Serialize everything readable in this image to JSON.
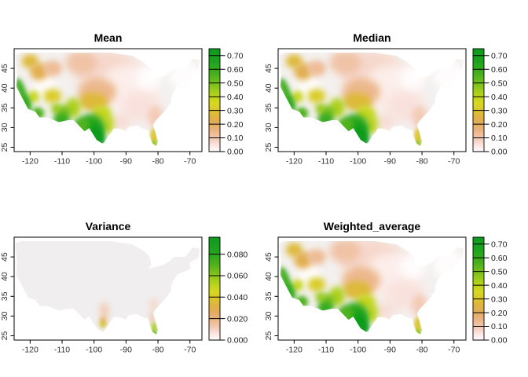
{
  "figure": {
    "background": "#ffffff",
    "layout": "2x2 grid of US raster map panels with right-side color scale legends"
  },
  "palette": {
    "description": "shared color ramp from low to high: white, pink, salmon, orange, yellow, yellow-green, green, dark green",
    "stops": [
      {
        "u": 0.0,
        "c": "#ffffff"
      },
      {
        "u": 0.07,
        "c": "#f9e1dc"
      },
      {
        "u": 0.13,
        "c": "#f2c8b0"
      },
      {
        "u": 0.2,
        "c": "#ebb485"
      },
      {
        "u": 0.27,
        "c": "#e4ab5e"
      },
      {
        "u": 0.33,
        "c": "#dfb243"
      },
      {
        "u": 0.4,
        "c": "#dcc42e"
      },
      {
        "u": 0.47,
        "c": "#d7d81f"
      },
      {
        "u": 0.53,
        "c": "#bdd51a"
      },
      {
        "u": 0.6,
        "c": "#9aca1a"
      },
      {
        "u": 0.67,
        "c": "#72bd1b"
      },
      {
        "u": 0.73,
        "c": "#51b31c"
      },
      {
        "u": 0.8,
        "c": "#35aa1d"
      },
      {
        "u": 0.87,
        "c": "#1fa31e"
      },
      {
        "u": 1.0,
        "c": "#0b9a1f"
      }
    ]
  },
  "hotspot_format": "[lon, lat, rx_deg, ry_deg, value, blur_px, rotate_deg(optional)]",
  "chart_data": [
    {
      "type": "heatmap",
      "title": "Mean",
      "xlabel": "",
      "ylabel": "",
      "x_ticks": [
        -120,
        -110,
        -100,
        -90,
        -80,
        -70
      ],
      "y_ticks": [
        45,
        40,
        35,
        30,
        25
      ],
      "xlim": [
        -125,
        -66.25
      ],
      "ylim": [
        23.9,
        50
      ],
      "grid": false,
      "base_color": "#f3f0ef",
      "legend": {
        "position": "right",
        "tick_labels": [
          "0.00",
          "0.10",
          "0.20",
          "0.30",
          "0.40",
          "0.50",
          "0.60",
          "0.70"
        ],
        "tick_values": [
          0,
          0.1,
          0.2,
          0.3,
          0.4,
          0.5,
          0.6,
          0.7
        ],
        "scale_max": 0.75
      },
      "field_hotspots": [
        [
          -96,
          44.5,
          10,
          5,
          0.07,
          6
        ],
        [
          -89,
          40,
          9,
          6,
          0.03,
          6
        ],
        [
          -104,
          46.5,
          5,
          3,
          0.11,
          5
        ],
        [
          -99,
          39,
          6,
          3.5,
          0.14,
          5
        ],
        [
          -85.5,
          35.5,
          6,
          4,
          0.05,
          6
        ],
        [
          -80.8,
          32.8,
          2.5,
          2.8,
          0.09,
          4
        ],
        [
          -91.5,
          31.5,
          3,
          2,
          0.06,
          5
        ],
        [
          -115.5,
          40.5,
          3.5,
          3,
          0.005,
          5
        ],
        [
          -71.5,
          43,
          5,
          4,
          0.005,
          5
        ],
        [
          -83,
          42.5,
          4,
          3,
          0.005,
          5
        ],
        [
          -120,
          46.8,
          2.6,
          1.8,
          0.27,
          4
        ],
        [
          -117.2,
          44.2,
          2.8,
          2.2,
          0.23,
          4
        ],
        [
          -113,
          45,
          3,
          2,
          0.13,
          4
        ],
        [
          -100.3,
          36.6,
          4.5,
          2.3,
          0.27,
          4
        ],
        [
          -97.6,
          33.6,
          3,
          2,
          0.38,
          4
        ],
        [
          -95.8,
          30.8,
          2,
          2.5,
          0.4,
          4
        ],
        [
          -113,
          38,
          2.8,
          1.8,
          0.32,
          4
        ],
        [
          -119,
          37.8,
          1.8,
          1.5,
          0.38,
          3.5
        ],
        [
          -106.6,
          35,
          2.5,
          2.5,
          0.42,
          4
        ],
        [
          -109.6,
          33.8,
          2.3,
          1.8,
          0.5,
          3.5
        ],
        [
          -111.8,
          34.8,
          1.6,
          1.3,
          0.45,
          3.5
        ],
        [
          -101,
          29.9,
          4.3,
          3.6,
          0.62,
          4
        ],
        [
          -100,
          28,
          3,
          3,
          0.72,
          3.5
        ],
        [
          -98.4,
          26.9,
          1.6,
          1.6,
          0.74,
          3
        ],
        [
          -104,
          30.4,
          2.5,
          2,
          0.55,
          3.5
        ],
        [
          -122.8,
          39.5,
          1.3,
          3.2,
          0.58,
          3,
          -20
        ],
        [
          -121.2,
          36.2,
          1.5,
          2.3,
          0.6,
          3,
          -20
        ],
        [
          -117.6,
          33.6,
          2,
          1.5,
          0.55,
          3
        ],
        [
          -110.2,
          32,
          2.5,
          1.6,
          0.6,
          3.5
        ],
        [
          -81.3,
          27.8,
          1.1,
          2,
          0.3,
          2.5
        ],
        [
          -81.1,
          25.8,
          0.9,
          1,
          0.47,
          2
        ]
      ]
    },
    {
      "type": "heatmap",
      "title": "Median",
      "xlabel": "",
      "ylabel": "",
      "x_ticks": [
        -120,
        -110,
        -100,
        -90,
        -80,
        -70
      ],
      "y_ticks": [
        45,
        40,
        35,
        30,
        25
      ],
      "xlim": [
        -125,
        -66.25
      ],
      "ylim": [
        23.9,
        50
      ],
      "grid": false,
      "base_color": "#f3f0ef",
      "legend": {
        "position": "right",
        "tick_labels": [
          "0.00",
          "0.10",
          "0.20",
          "0.30",
          "0.40",
          "0.50",
          "0.60",
          "0.70"
        ],
        "tick_values": [
          0,
          0.1,
          0.2,
          0.3,
          0.4,
          0.5,
          0.6,
          0.7
        ],
        "scale_max": 0.75
      },
      "field_hotspots": [
        [
          -96,
          44.5,
          10,
          5,
          0.07,
          6
        ],
        [
          -89,
          40,
          9,
          6,
          0.03,
          6
        ],
        [
          -104,
          46.5,
          5,
          3,
          0.11,
          5
        ],
        [
          -99,
          39,
          6,
          3.5,
          0.14,
          5
        ],
        [
          -85.5,
          35.5,
          6,
          4,
          0.05,
          6
        ],
        [
          -80.8,
          32.8,
          2.5,
          2.8,
          0.09,
          4
        ],
        [
          -91.5,
          31.5,
          3,
          2,
          0.06,
          5
        ],
        [
          -115.5,
          40.5,
          3.5,
          3,
          0.005,
          5
        ],
        [
          -71.5,
          43,
          5,
          4,
          0.005,
          5
        ],
        [
          -83,
          42.5,
          4,
          3,
          0.005,
          5
        ],
        [
          -120,
          46.8,
          2.6,
          1.8,
          0.27,
          4
        ],
        [
          -117.2,
          44.2,
          2.8,
          2.2,
          0.23,
          4
        ],
        [
          -113,
          45,
          3,
          2,
          0.13,
          4
        ],
        [
          -100.3,
          36.6,
          4.5,
          2.3,
          0.27,
          4
        ],
        [
          -97.6,
          33.6,
          3,
          2,
          0.38,
          4
        ],
        [
          -95.8,
          30.8,
          2,
          2.5,
          0.4,
          4
        ],
        [
          -113,
          38,
          2.8,
          1.8,
          0.32,
          4
        ],
        [
          -119,
          37.8,
          1.8,
          1.5,
          0.38,
          3.5
        ],
        [
          -106.6,
          35,
          2.5,
          2.5,
          0.42,
          4
        ],
        [
          -109.6,
          33.8,
          2.3,
          1.8,
          0.5,
          3.5
        ],
        [
          -111.8,
          34.8,
          1.6,
          1.3,
          0.45,
          3.5
        ],
        [
          -101,
          29.9,
          4.3,
          3.6,
          0.62,
          4
        ],
        [
          -100,
          28,
          3,
          3,
          0.72,
          3.5
        ],
        [
          -98.4,
          26.9,
          1.6,
          1.6,
          0.74,
          3
        ],
        [
          -104,
          30.4,
          2.5,
          2,
          0.55,
          3.5
        ],
        [
          -122.8,
          39.5,
          1.3,
          3.2,
          0.58,
          3,
          -20
        ],
        [
          -121.2,
          36.2,
          1.5,
          2.3,
          0.6,
          3,
          -20
        ],
        [
          -117.6,
          33.6,
          2,
          1.5,
          0.55,
          3
        ],
        [
          -110.2,
          32,
          2.5,
          1.6,
          0.6,
          3.5
        ],
        [
          -81.3,
          27.8,
          1.1,
          2,
          0.3,
          2.5
        ],
        [
          -81.1,
          25.8,
          0.9,
          1,
          0.47,
          2
        ]
      ]
    },
    {
      "type": "heatmap",
      "title": "Variance",
      "xlabel": "",
      "ylabel": "",
      "x_ticks": [
        -120,
        -110,
        -100,
        -90,
        -80,
        -70
      ],
      "y_ticks": [
        45,
        40,
        35,
        30,
        25
      ],
      "xlim": [
        -125,
        -66.25
      ],
      "ylim": [
        23.9,
        50
      ],
      "grid": false,
      "base_color": "#f0eeee",
      "legend": {
        "position": "right",
        "tick_labels": [
          "0.000",
          "0.020",
          "0.040",
          "0.060",
          "0.080"
        ],
        "tick_values": [
          0,
          0.02,
          0.04,
          0.06,
          0.08
        ],
        "scale_max": 0.0958
      },
      "field_hotspots": [
        [
          -96.8,
          31.2,
          1.3,
          2.3,
          0.012,
          4
        ],
        [
          -97.2,
          28.5,
          1,
          1.3,
          0.03,
          3
        ],
        [
          -97.3,
          27.7,
          0.55,
          0.7,
          0.048,
          2
        ],
        [
          -81.3,
          32.8,
          1.2,
          1.8,
          0.009,
          4
        ],
        [
          -81.6,
          29.5,
          1,
          1.6,
          0.012,
          3.5
        ],
        [
          -81.2,
          26.8,
          0.85,
          1.6,
          0.055,
          2.5
        ],
        [
          -81,
          25.4,
          0.5,
          0.7,
          0.085,
          2
        ]
      ]
    },
    {
      "type": "heatmap",
      "title": "Weighted_average",
      "xlabel": "",
      "ylabel": "",
      "x_ticks": [
        -120,
        -110,
        -100,
        -90,
        -80,
        -70
      ],
      "y_ticks": [
        45,
        40,
        35,
        30,
        25
      ],
      "xlim": [
        -125,
        -66.25
      ],
      "ylim": [
        23.9,
        50
      ],
      "grid": false,
      "base_color": "#f3f0ef",
      "legend": {
        "position": "right",
        "tick_labels": [
          "0.00",
          "0.10",
          "0.20",
          "0.30",
          "0.40",
          "0.50",
          "0.60",
          "0.70"
        ],
        "tick_values": [
          0,
          0.1,
          0.2,
          0.3,
          0.4,
          0.5,
          0.6,
          0.7
        ],
        "scale_max": 0.75
      },
      "field_hotspots": [
        [
          -96,
          44.5,
          10,
          5,
          0.07,
          6
        ],
        [
          -89,
          40,
          9,
          6,
          0.03,
          6
        ],
        [
          -104,
          46.5,
          5,
          3,
          0.11,
          5
        ],
        [
          -99,
          39,
          6,
          3.5,
          0.14,
          5
        ],
        [
          -85.5,
          35.5,
          6,
          4,
          0.05,
          6
        ],
        [
          -80.8,
          32.8,
          2.5,
          2.8,
          0.09,
          4
        ],
        [
          -91.5,
          31.5,
          3,
          2,
          0.06,
          5
        ],
        [
          -115.5,
          40.5,
          3.5,
          3,
          0.005,
          5
        ],
        [
          -71.5,
          43,
          5,
          4,
          0.005,
          5
        ],
        [
          -83,
          42.5,
          4,
          3,
          0.005,
          5
        ],
        [
          -120,
          46.8,
          2.6,
          1.8,
          0.27,
          4
        ],
        [
          -117.2,
          44.2,
          2.8,
          2.2,
          0.23,
          4
        ],
        [
          -113,
          45,
          3,
          2,
          0.13,
          4
        ],
        [
          -100.3,
          36.6,
          4.5,
          2.3,
          0.27,
          4
        ],
        [
          -97.6,
          33.6,
          3,
          2,
          0.38,
          4
        ],
        [
          -95.8,
          30.8,
          2,
          2.5,
          0.4,
          4
        ],
        [
          -113,
          38,
          2.8,
          1.8,
          0.32,
          4
        ],
        [
          -119,
          37.8,
          1.8,
          1.5,
          0.38,
          3.5
        ],
        [
          -106.6,
          35,
          2.5,
          2.5,
          0.42,
          4
        ],
        [
          -109.6,
          33.8,
          2.3,
          1.8,
          0.5,
          3.5
        ],
        [
          -111.8,
          34.8,
          1.6,
          1.3,
          0.45,
          3.5
        ],
        [
          -101,
          29.9,
          4.3,
          3.6,
          0.62,
          4
        ],
        [
          -100,
          28,
          3,
          3,
          0.72,
          3.5
        ],
        [
          -98.4,
          26.9,
          1.6,
          1.6,
          0.74,
          3
        ],
        [
          -104,
          30.4,
          2.5,
          2,
          0.55,
          3.5
        ],
        [
          -122.8,
          39.5,
          1.3,
          3.2,
          0.58,
          3,
          -20
        ],
        [
          -121.2,
          36.2,
          1.5,
          2.3,
          0.6,
          3,
          -20
        ],
        [
          -117.6,
          33.6,
          2,
          1.5,
          0.55,
          3
        ],
        [
          -110.2,
          32,
          2.5,
          1.6,
          0.6,
          3.5
        ],
        [
          -81.3,
          27.8,
          1.1,
          2,
          0.3,
          2.5
        ],
        [
          -81.1,
          25.8,
          0.9,
          1,
          0.47,
          2
        ]
      ]
    }
  ]
}
